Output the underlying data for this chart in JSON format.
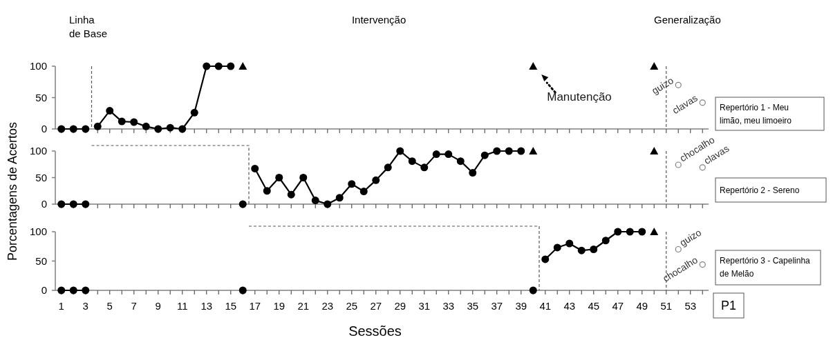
{
  "chart_data": [
    {
      "type": "line",
      "xlim": [
        0.5,
        54.5
      ],
      "ylim": [
        0,
        100
      ],
      "yticks": [
        0,
        50,
        100
      ],
      "tick_labels": "y",
      "grid": false,
      "xticks": [
        1,
        {
          "value": 2,
          "label": null
        },
        3,
        {
          "value": 4,
          "label": null
        },
        5,
        {
          "value": 6,
          "label": null
        },
        7,
        {
          "value": 8,
          "label": null
        },
        9,
        {
          "value": 10,
          "label": null
        },
        11,
        {
          "value": 12,
          "label": null
        },
        13,
        {
          "value": 14,
          "label": null
        },
        15,
        {
          "value": 16,
          "label": null
        },
        17,
        {
          "value": 18,
          "label": null
        },
        19,
        {
          "value": 20,
          "label": null
        },
        21,
        {
          "value": 22,
          "label": null
        },
        23,
        {
          "value": 24,
          "label": null
        },
        25,
        {
          "value": 26,
          "label": null
        },
        27,
        {
          "value": 28,
          "label": null
        },
        29,
        {
          "value": 30,
          "label": null
        },
        31,
        {
          "value": 32,
          "label": null
        },
        33,
        {
          "value": 34,
          "label": null
        },
        35,
        {
          "value": 36,
          "label": null
        },
        37,
        {
          "value": 38,
          "label": null
        },
        39,
        {
          "value": 40,
          "label": null
        },
        41,
        {
          "value": 42,
          "label": null
        },
        43,
        {
          "value": 44,
          "label": null
        },
        45,
        {
          "value": 46,
          "label": null
        },
        47,
        {
          "value": 48,
          "label": null
        },
        49,
        {
          "value": 50,
          "label": null
        },
        51,
        {
          "value": 52,
          "label": null
        },
        53,
        {
          "value": 54,
          "label": null
        }
      ],
      "series": [
        {
          "type": "line",
          "marker": "circle",
          "color": "#000000",
          "x": [
            1,
            2,
            3
          ],
          "values": [
            0,
            0,
            0
          ]
        },
        {
          "type": "line",
          "marker": "circle",
          "color": "#000000",
          "x": [
            4,
            5,
            6,
            7,
            8,
            9,
            10,
            11,
            12,
            13,
            14,
            15
          ],
          "values": [
            4,
            29,
            12,
            11,
            4,
            0,
            2,
            0,
            26,
            100,
            100,
            100
          ]
        },
        {
          "type": "scatter",
          "marker": "triangle",
          "color": "#000000",
          "x": [
            16,
            40,
            50
          ],
          "values": [
            100,
            100,
            100
          ]
        },
        {
          "type": "scatter",
          "marker": "circle",
          "color": "#808080",
          "x": [
            52,
            54
          ],
          "values": [
            70,
            42
          ]
        }
      ],
      "ref_lines": [
        {
          "axis": "x",
          "value": 3.5,
          "color": "#555555",
          "line_style": "dashed"
        },
        {
          "axis": "x",
          "value": 51,
          "color": "#555555",
          "line_style": "dashed"
        }
      ],
      "annotations": [
        "Linha de Base",
        "Intervenção",
        "Generalização",
        "Repertório 1 - Meu limão, meu limoeiro",
        {
          "text": "Manutenção",
          "x": 40,
          "y": 100
        },
        {
          "text": "guizo",
          "x": 52,
          "y": 70
        },
        {
          "text": "clavas",
          "x": 54,
          "y": 42
        }
      ]
    },
    {
      "type": "line",
      "ylabel": "Porcentagens de Acertos",
      "xlim": [
        0.5,
        54.5
      ],
      "ylim": [
        0,
        100
      ],
      "yticks": [
        0,
        50,
        100
      ],
      "tick_labels": "y",
      "grid": false,
      "xticks": [
        1,
        {
          "value": 2,
          "label": null
        },
        3,
        {
          "value": 4,
          "label": null
        },
        5,
        {
          "value": 6,
          "label": null
        },
        7,
        {
          "value": 8,
          "label": null
        },
        9,
        {
          "value": 10,
          "label": null
        },
        11,
        {
          "value": 12,
          "label": null
        },
        13,
        {
          "value": 14,
          "label": null
        },
        15,
        {
          "value": 16,
          "label": null
        },
        17,
        {
          "value": 18,
          "label": null
        },
        19,
        {
          "value": 20,
          "label": null
        },
        21,
        {
          "value": 22,
          "label": null
        },
        23,
        {
          "value": 24,
          "label": null
        },
        25,
        {
          "value": 26,
          "label": null
        },
        27,
        {
          "value": 28,
          "label": null
        },
        29,
        {
          "value": 30,
          "label": null
        },
        31,
        {
          "value": 32,
          "label": null
        },
        33,
        {
          "value": 34,
          "label": null
        },
        35,
        {
          "value": 36,
          "label": null
        },
        37,
        {
          "value": 38,
          "label": null
        },
        39,
        {
          "value": 40,
          "label": null
        },
        41,
        {
          "value": 42,
          "label": null
        },
        43,
        {
          "value": 44,
          "label": null
        },
        45,
        {
          "value": 46,
          "label": null
        },
        47,
        {
          "value": 48,
          "label": null
        },
        49,
        {
          "value": 50,
          "label": null
        },
        51,
        {
          "value": 52,
          "label": null
        },
        53,
        {
          "value": 54,
          "label": null
        }
      ],
      "series": [
        {
          "type": "line",
          "marker": "circle",
          "color": "#000000",
          "x": [
            1,
            2,
            3
          ],
          "values": [
            0,
            0,
            0
          ]
        },
        {
          "type": "line",
          "marker": "circle",
          "color": "#000000",
          "x": [
            16
          ],
          "values": [
            0
          ]
        },
        {
          "type": "line",
          "marker": "circle",
          "color": "#000000",
          "x": [
            17,
            18,
            19,
            20,
            21,
            22,
            23,
            24,
            25,
            26,
            27,
            28,
            29,
            30,
            31,
            32,
            33,
            34,
            35,
            36,
            37,
            38,
            39
          ],
          "values": [
            67,
            25,
            50,
            18,
            50,
            7,
            0,
            12,
            38,
            24,
            45,
            69,
            100,
            81,
            69,
            94,
            94,
            81,
            59,
            92,
            100,
            100,
            100
          ]
        },
        {
          "type": "scatter",
          "marker": "triangle",
          "color": "#000000",
          "x": [
            40,
            50
          ],
          "values": [
            100,
            100
          ]
        },
        {
          "type": "scatter",
          "marker": "circle",
          "color": "#808080",
          "x": [
            52,
            54
          ],
          "values": [
            74,
            69
          ]
        }
      ],
      "ref_lines": [
        {
          "axis": "x",
          "value": 16.5,
          "color": "#555555",
          "line_style": "dashed"
        },
        {
          "axis": "x",
          "value": 51,
          "color": "#555555",
          "line_style": "dashed"
        }
      ],
      "annotations": [
        "Repertório 2 - Sereno",
        {
          "text": "chocalho",
          "x": 52,
          "y": 74
        },
        {
          "text": "clavas",
          "x": 54,
          "y": 69
        }
      ]
    },
    {
      "type": "line",
      "xlabel": "Sessões",
      "xlim": [
        0.5,
        54.5
      ],
      "ylim": [
        0,
        100
      ],
      "yticks": [
        0,
        50,
        100
      ],
      "grid": false,
      "xticks": [
        1,
        {
          "value": 2,
          "label": null
        },
        3,
        {
          "value": 4,
          "label": null
        },
        5,
        {
          "value": 6,
          "label": null
        },
        7,
        {
          "value": 8,
          "label": null
        },
        9,
        {
          "value": 10,
          "label": null
        },
        11,
        {
          "value": 12,
          "label": null
        },
        13,
        {
          "value": 14,
          "label": null
        },
        15,
        {
          "value": 16,
          "label": null
        },
        17,
        {
          "value": 18,
          "label": null
        },
        19,
        {
          "value": 20,
          "label": null
        },
        21,
        {
          "value": 22,
          "label": null
        },
        23,
        {
          "value": 24,
          "label": null
        },
        25,
        {
          "value": 26,
          "label": null
        },
        27,
        {
          "value": 28,
          "label": null
        },
        29,
        {
          "value": 30,
          "label": null
        },
        31,
        {
          "value": 32,
          "label": null
        },
        33,
        {
          "value": 34,
          "label": null
        },
        35,
        {
          "value": 36,
          "label": null
        },
        37,
        {
          "value": 38,
          "label": null
        },
        39,
        {
          "value": 40,
          "label": null
        },
        41,
        {
          "value": 42,
          "label": null
        },
        43,
        {
          "value": 44,
          "label": null
        },
        45,
        {
          "value": 46,
          "label": null
        },
        47,
        {
          "value": 48,
          "label": null
        },
        49,
        {
          "value": 50,
          "label": null
        },
        51,
        {
          "value": 52,
          "label": null
        },
        53,
        {
          "value": 54,
          "label": null
        }
      ],
      "series": [
        {
          "type": "line",
          "marker": "circle",
          "color": "#000000",
          "x": [
            1,
            2,
            3
          ],
          "values": [
            0,
            0,
            0
          ]
        },
        {
          "type": "line",
          "marker": "circle",
          "color": "#000000",
          "x": [
            16
          ],
          "values": [
            0
          ]
        },
        {
          "type": "line",
          "marker": "circle",
          "color": "#000000",
          "x": [
            40
          ],
          "values": [
            0
          ]
        },
        {
          "type": "line",
          "marker": "circle",
          "color": "#000000",
          "x": [
            41,
            42,
            43,
            44,
            45,
            46,
            47,
            48,
            49
          ],
          "values": [
            53,
            73,
            80,
            68,
            70,
            85,
            100,
            100,
            100
          ]
        },
        {
          "type": "scatter",
          "marker": "triangle",
          "color": "#000000",
          "x": [
            50
          ],
          "values": [
            100
          ]
        },
        {
          "type": "scatter",
          "marker": "circle",
          "color": "#808080",
          "x": [
            52,
            54
          ],
          "values": [
            70,
            44
          ]
        }
      ],
      "ref_lines": [
        {
          "axis": "x",
          "value": 40.5,
          "color": "#555555",
          "line_style": "dashed"
        },
        {
          "axis": "x",
          "value": 51,
          "color": "#555555",
          "line_style": "dashed"
        }
      ],
      "annotations": [
        "Repertório 3 - Capelinha de Melão",
        "P1",
        {
          "text": "guizo",
          "x": 52,
          "y": 70
        },
        {
          "text": "chocalho",
          "x": 54,
          "y": 44
        }
      ]
    }
  ]
}
